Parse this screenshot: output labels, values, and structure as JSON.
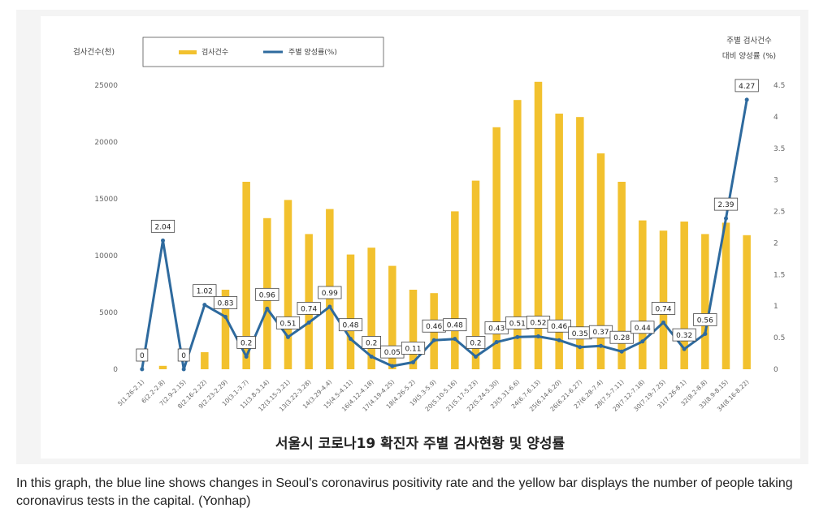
{
  "chart_data": {
    "type": "bar",
    "title": "서울시 코로나19 확진자 주별 검사현황 및 양성률",
    "ylabel_left": "검사건수(천)",
    "ylabel_right_line1": "주별 검사건수",
    "ylabel_right_line2": "대비 양성률 (%)",
    "ylim_left": [
      0,
      25000
    ],
    "ylim_right": [
      0,
      4.5
    ],
    "yticks_left": [
      "0",
      "5000",
      "10000",
      "15000",
      "20000",
      "25000"
    ],
    "yticks_right": [
      "0",
      "0.5",
      "1",
      "1.5",
      "2",
      "2.5",
      "3",
      "3.5",
      "4",
      "4.5"
    ],
    "legend_position": "top-left",
    "grid": false,
    "categories": [
      "5(1.26-2.1)",
      "6(2.2-2.8)",
      "7(2.9-2.15)",
      "8(2.16-2.22)",
      "9(2.23-2.29)",
      "10(3.1-3.7)",
      "11(3.8-3.14)",
      "12(3.15-3.21)",
      "13(3.22-3.28)",
      "14(3.29-4.4)",
      "15(4.5-4.11)",
      "16(4.12-4.18)",
      "17(4.19-4.25)",
      "18(4.26-5.2)",
      "19(5.3-5.9)",
      "20(5.10-5.16)",
      "21(5.17-5.23)",
      "22(5.24-5.30)",
      "23(5.31-6.6)",
      "24(6.7-6.13)",
      "25(6.14-6.20)",
      "26(6.21-6.27)",
      "27(6.28-7.4)",
      "28(7.5-7.11)",
      "29(7.12-7.18)",
      "30(7.19-7.25)",
      "31(7.26-8.1)",
      "32(8.2-8.8)",
      "33(8.9-8.15)",
      "34(8.16-8.22)"
    ],
    "series": [
      {
        "name": "검사건수",
        "type": "bar",
        "axis": "left",
        "color": "#f2c12e",
        "values": [
          0,
          300,
          0,
          1500,
          7000,
          16500,
          13300,
          14900,
          11900,
          14100,
          10100,
          10700,
          9100,
          7000,
          6700,
          13900,
          16600,
          21300,
          23700,
          25300,
          22500,
          22200,
          19000,
          16500,
          13100,
          12200,
          13000,
          11900,
          12900,
          11800
        ]
      },
      {
        "name": "주별 양성률(%)",
        "type": "line",
        "axis": "right",
        "color": "#2e6a9e",
        "values": [
          0,
          2.04,
          0,
          1.02,
          0.83,
          0.2,
          0.96,
          0.51,
          0.74,
          0.99,
          0.48,
          0.2,
          0.05,
          0.11,
          0.46,
          0.48,
          0.2,
          0.43,
          0.51,
          0.52,
          0.46,
          0.35,
          0.37,
          0.28,
          0.44,
          0.74,
          0.32,
          0.56,
          2.39,
          4.27
        ],
        "labels": [
          "0",
          "2.04",
          "0",
          "1.02",
          "0.83",
          "0.2",
          "0.96",
          "0.51",
          "0.74",
          "0.99",
          "0.48",
          "0.2",
          "0.05",
          "0.11",
          "0.46",
          "0.48",
          "0.2",
          "0.43",
          "0.51",
          "0.52",
          "0.46",
          "0.35",
          "0.37",
          "0.28",
          "0.44",
          "0.74",
          "0.32",
          "0.56",
          "2.39",
          "4.27"
        ]
      }
    ]
  },
  "caption": "In this graph, the blue line shows changes in Seoul's coronavirus positivity rate and the yellow bar displays the number of people taking coronavirus tests in the capital. (Yonhap)"
}
